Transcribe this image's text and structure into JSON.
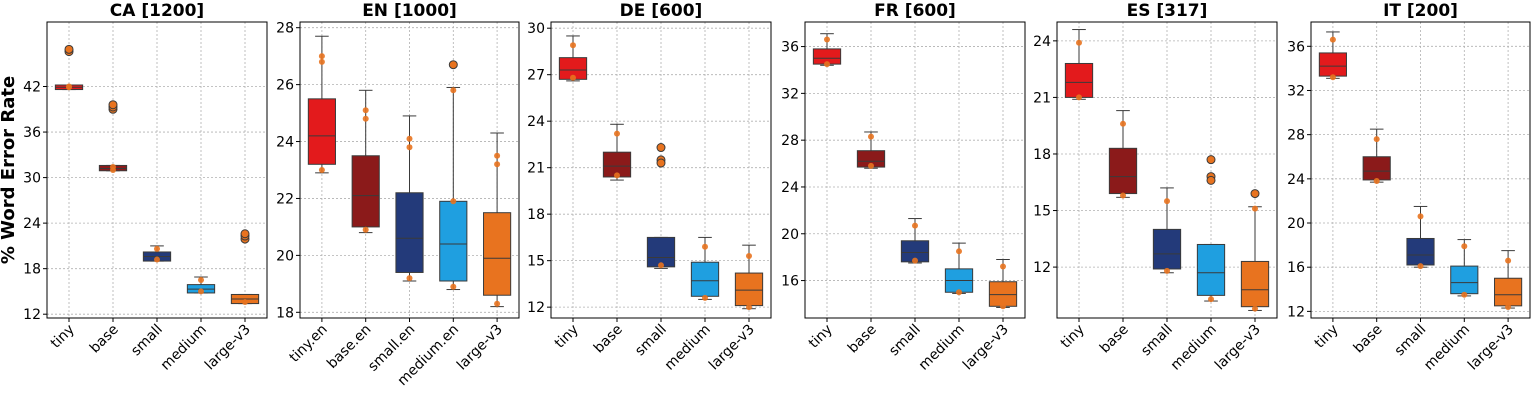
{
  "figure": {
    "ylabel": "% Word Error Rate"
  },
  "chart_data": [
    {
      "type": "box",
      "title": "CA [1200]",
      "categories": [
        "tiny",
        "base",
        "small",
        "medium",
        "large-v3"
      ],
      "colors": [
        "#e31a1c",
        "#8b1a1a",
        "#233a7a",
        "#1f9fe0",
        "#e8731f"
      ],
      "ylim": [
        11.5,
        50.5
      ],
      "yticks": [
        12,
        18,
        24,
        30,
        36,
        42
      ],
      "boxes": [
        {
          "whislo": 41.6,
          "q1": 41.6,
          "med": 41.9,
          "q3": 42.2,
          "whishi": 42.2,
          "fliers": [
            46.6,
            46.9
          ],
          "points": [
            41.9,
            42.0
          ]
        },
        {
          "whislo": 30.9,
          "q1": 30.9,
          "med": 31.2,
          "q3": 31.6,
          "whishi": 31.6,
          "fliers": [
            39.0,
            39.3,
            39.6
          ],
          "points": [
            31.0,
            31.4
          ]
        },
        {
          "whislo": 19.0,
          "q1": 19.0,
          "med": 19.6,
          "q3": 20.2,
          "whishi": 21.0,
          "fliers": [],
          "points": [
            19.2,
            20.6
          ]
        },
        {
          "whislo": 14.8,
          "q1": 14.8,
          "med": 15.3,
          "q3": 15.9,
          "whishi": 16.9,
          "fliers": [],
          "points": [
            15.0,
            16.5
          ]
        },
        {
          "whislo": 13.4,
          "q1": 13.4,
          "med": 14.0,
          "q3": 14.6,
          "whishi": 14.6,
          "fliers": [
            21.9,
            22.3,
            22.6
          ],
          "points": [
            13.6
          ]
        }
      ]
    },
    {
      "type": "box",
      "title": "EN [1000]",
      "categories": [
        "tiny.en",
        "base.en",
        "small.en",
        "medium.en",
        "large-v3"
      ],
      "colors": [
        "#e31a1c",
        "#8b1a1a",
        "#233a7a",
        "#1f9fe0",
        "#e8731f"
      ],
      "ylim": [
        17.8,
        28.2
      ],
      "yticks": [
        18,
        20,
        22,
        24,
        26,
        28
      ],
      "boxes": [
        {
          "whislo": 22.9,
          "q1": 23.2,
          "med": 24.2,
          "q3": 25.5,
          "whishi": 27.7,
          "fliers": [],
          "points": [
            27.0,
            26.8,
            23.0
          ]
        },
        {
          "whislo": 20.8,
          "q1": 21.0,
          "med": 22.1,
          "q3": 23.5,
          "whishi": 25.8,
          "fliers": [],
          "points": [
            25.1,
            24.8,
            20.9
          ]
        },
        {
          "whislo": 19.1,
          "q1": 19.4,
          "med": 20.6,
          "q3": 22.2,
          "whishi": 24.9,
          "fliers": [],
          "points": [
            24.1,
            23.8,
            19.2
          ]
        },
        {
          "whislo": 18.8,
          "q1": 19.1,
          "med": 20.4,
          "q3": 21.9,
          "whishi": 25.9,
          "fliers": [
            26.7
          ],
          "points": [
            25.8,
            21.9,
            18.9
          ]
        },
        {
          "whislo": 18.2,
          "q1": 18.6,
          "med": 19.9,
          "q3": 21.5,
          "whishi": 24.3,
          "fliers": [],
          "points": [
            23.5,
            23.2,
            18.3
          ]
        }
      ]
    },
    {
      "type": "box",
      "title": "DE [600]",
      "categories": [
        "tiny",
        "base",
        "small",
        "medium",
        "large-v3"
      ],
      "colors": [
        "#e31a1c",
        "#8b1a1a",
        "#233a7a",
        "#1f9fe0",
        "#e8731f"
      ],
      "ylim": [
        11.3,
        30.4
      ],
      "yticks": [
        12,
        15,
        18,
        21,
        24,
        27,
        30
      ],
      "boxes": [
        {
          "whislo": 26.6,
          "q1": 26.7,
          "med": 27.3,
          "q3": 28.1,
          "whishi": 29.5,
          "fliers": [],
          "points": [
            28.9,
            26.8
          ]
        },
        {
          "whislo": 20.2,
          "q1": 20.4,
          "med": 21.1,
          "q3": 22.0,
          "whishi": 23.8,
          "fliers": [],
          "points": [
            23.2,
            20.5
          ]
        },
        {
          "whislo": 14.5,
          "q1": 14.6,
          "med": 15.2,
          "q3": 16.5,
          "whishi": 16.5,
          "fliers": [
            22.3,
            21.5,
            21.3
          ],
          "points": [
            14.7
          ]
        },
        {
          "whislo": 12.5,
          "q1": 12.7,
          "med": 13.7,
          "q3": 14.9,
          "whishi": 16.5,
          "fliers": [],
          "points": [
            15.9,
            12.6
          ]
        },
        {
          "whislo": 11.9,
          "q1": 12.1,
          "med": 13.1,
          "q3": 14.2,
          "whishi": 16.0,
          "fliers": [],
          "points": [
            15.3,
            12.0
          ]
        }
      ]
    },
    {
      "type": "box",
      "title": "FR [600]",
      "categories": [
        "tiny",
        "base",
        "small",
        "medium",
        "large-v3"
      ],
      "colors": [
        "#e31a1c",
        "#8b1a1a",
        "#233a7a",
        "#1f9fe0",
        "#e8731f"
      ],
      "ylim": [
        12.8,
        38.1
      ],
      "yticks": [
        16,
        20,
        24,
        28,
        32,
        36
      ],
      "boxes": [
        {
          "whislo": 34.4,
          "q1": 34.5,
          "med": 35.0,
          "q3": 35.8,
          "whishi": 37.1,
          "fliers": [],
          "points": [
            36.6,
            34.5
          ]
        },
        {
          "whislo": 25.6,
          "q1": 25.7,
          "med": 26.2,
          "q3": 27.1,
          "whishi": 28.7,
          "fliers": [],
          "points": [
            28.3,
            25.8
          ]
        },
        {
          "whislo": 17.5,
          "q1": 17.6,
          "med": 18.4,
          "q3": 19.4,
          "whishi": 21.3,
          "fliers": [],
          "points": [
            20.7,
            17.7
          ]
        },
        {
          "whislo": 14.9,
          "q1": 15.0,
          "med": 16.0,
          "q3": 17.0,
          "whishi": 19.2,
          "fliers": [],
          "points": [
            18.5,
            15.0
          ]
        },
        {
          "whislo": 13.7,
          "q1": 13.8,
          "med": 14.8,
          "q3": 15.9,
          "whishi": 17.8,
          "fliers": [],
          "points": [
            17.2,
            13.8
          ]
        }
      ]
    },
    {
      "type": "box",
      "title": "ES [317]",
      "categories": [
        "tiny",
        "base",
        "small",
        "medium",
        "large-v3"
      ],
      "colors": [
        "#e31a1c",
        "#8b1a1a",
        "#233a7a",
        "#1f9fe0",
        "#e8731f"
      ],
      "ylim": [
        9.3,
        25.0
      ],
      "yticks": [
        12,
        15,
        18,
        21,
        24
      ],
      "boxes": [
        {
          "whislo": 20.9,
          "q1": 21.0,
          "med": 21.8,
          "q3": 22.8,
          "whishi": 24.6,
          "fliers": [],
          "points": [
            23.9,
            21.0
          ]
        },
        {
          "whislo": 15.7,
          "q1": 15.9,
          "med": 16.8,
          "q3": 18.3,
          "whishi": 20.3,
          "fliers": [],
          "points": [
            19.6,
            15.8
          ]
        },
        {
          "whislo": 11.7,
          "q1": 11.9,
          "med": 12.7,
          "q3": 14.0,
          "whishi": 16.2,
          "fliers": [],
          "points": [
            15.5,
            11.8
          ]
        },
        {
          "whislo": 10.2,
          "q1": 10.5,
          "med": 11.7,
          "q3": 13.2,
          "whishi": 13.2,
          "fliers": [
            17.7,
            16.8,
            16.6
          ],
          "points": [
            10.3
          ]
        },
        {
          "whislo": 9.7,
          "q1": 9.9,
          "med": 10.8,
          "q3": 12.3,
          "whishi": 15.2,
          "fliers": [
            15.9
          ],
          "points": [
            15.1,
            9.8
          ]
        }
      ]
    },
    {
      "type": "box",
      "title": "IT [200]",
      "categories": [
        "tiny",
        "base",
        "small",
        "medium",
        "large-v3"
      ],
      "colors": [
        "#e31a1c",
        "#8b1a1a",
        "#233a7a",
        "#1f9fe0",
        "#e8731f"
      ],
      "ylim": [
        11.4,
        38.2
      ],
      "yticks": [
        12,
        16,
        20,
        24,
        28,
        32,
        36
      ],
      "boxes": [
        {
          "whislo": 33.1,
          "q1": 33.3,
          "med": 34.2,
          "q3": 35.4,
          "whishi": 37.3,
          "fliers": [],
          "points": [
            36.6,
            33.2
          ]
        },
        {
          "whislo": 23.7,
          "q1": 23.9,
          "med": 24.7,
          "q3": 26.0,
          "whishi": 28.5,
          "fliers": [],
          "points": [
            27.6,
            23.8
          ]
        },
        {
          "whislo": 16.0,
          "q1": 16.2,
          "med": 17.1,
          "q3": 18.6,
          "whishi": 21.5,
          "fliers": [],
          "points": [
            20.6,
            16.1
          ]
        },
        {
          "whislo": 13.4,
          "q1": 13.6,
          "med": 14.6,
          "q3": 16.1,
          "whishi": 18.5,
          "fliers": [],
          "points": [
            17.9,
            13.5
          ]
        },
        {
          "whislo": 12.3,
          "q1": 12.5,
          "med": 13.5,
          "q3": 15.0,
          "whishi": 17.5,
          "fliers": [],
          "points": [
            16.6,
            12.4
          ]
        }
      ]
    }
  ]
}
